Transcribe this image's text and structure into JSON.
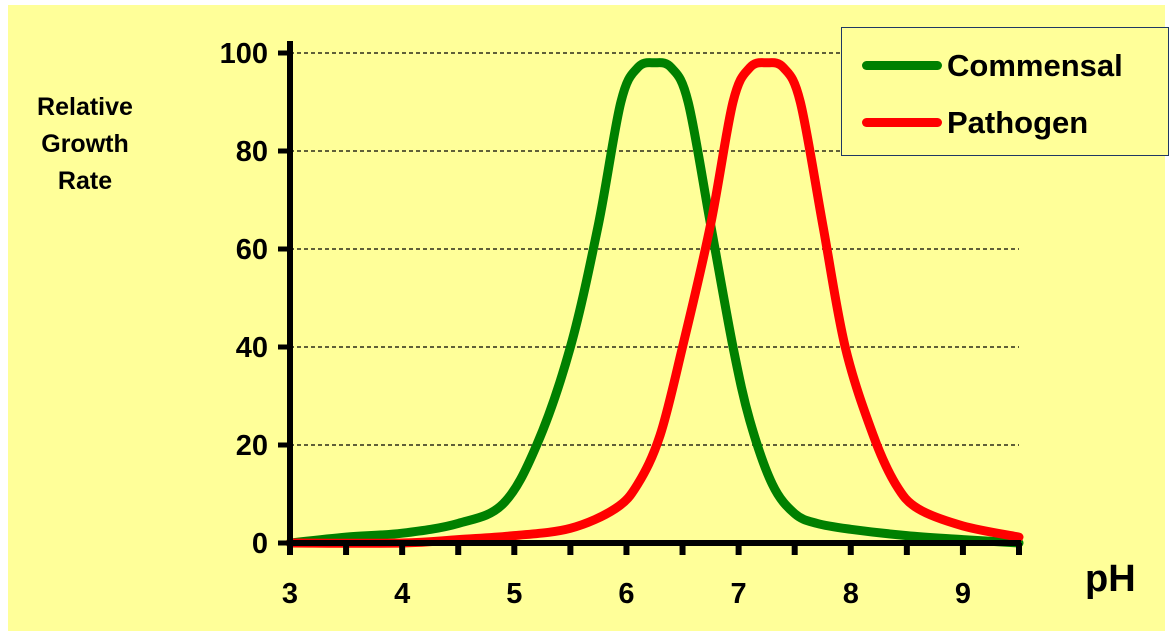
{
  "chart_data": {
    "type": "line",
    "title": "",
    "xlabel": "pH",
    "ylabel": [
      "Relative",
      "Growth",
      "Rate"
    ],
    "xlim": [
      3,
      9.5
    ],
    "ylim": [
      0,
      100
    ],
    "x_ticks": [
      3,
      4,
      5,
      6,
      7,
      8,
      9
    ],
    "y_ticks": [
      0,
      20,
      40,
      60,
      80,
      100
    ],
    "grid": "horizontal-dashed",
    "legend_position": "top-right",
    "series": [
      {
        "name": "Commensal",
        "color": "#008000",
        "points": [
          [
            3,
            0
          ],
          [
            3.5,
            1.2
          ],
          [
            4,
            2
          ],
          [
            4.5,
            4
          ],
          [
            4.9,
            8
          ],
          [
            5.2,
            20
          ],
          [
            5.5,
            40
          ],
          [
            5.75,
            65
          ],
          [
            5.95,
            90
          ],
          [
            6.1,
            97
          ],
          [
            6.25,
            98
          ],
          [
            6.4,
            97
          ],
          [
            6.55,
            90
          ],
          [
            6.75,
            65
          ],
          [
            6.95,
            40
          ],
          [
            7.1,
            25
          ],
          [
            7.3,
            12
          ],
          [
            7.5,
            6
          ],
          [
            7.7,
            4
          ],
          [
            8,
            2.8
          ],
          [
            8.5,
            1.5
          ],
          [
            9,
            0.7
          ],
          [
            9.5,
            0
          ]
        ]
      },
      {
        "name": "Pathogen",
        "color": "#ff0000",
        "points": [
          [
            3,
            0
          ],
          [
            4,
            0
          ],
          [
            4.5,
            0.7
          ],
          [
            5,
            1.5
          ],
          [
            5.5,
            3
          ],
          [
            5.9,
            7
          ],
          [
            6.1,
            12
          ],
          [
            6.3,
            22
          ],
          [
            6.5,
            40
          ],
          [
            6.75,
            65
          ],
          [
            6.95,
            90
          ],
          [
            7.1,
            97
          ],
          [
            7.25,
            98
          ],
          [
            7.4,
            97
          ],
          [
            7.55,
            90
          ],
          [
            7.75,
            65
          ],
          [
            7.95,
            40
          ],
          [
            8.2,
            22
          ],
          [
            8.4,
            12
          ],
          [
            8.6,
            7
          ],
          [
            9,
            3.5
          ],
          [
            9.5,
            1.2
          ]
        ]
      }
    ]
  }
}
